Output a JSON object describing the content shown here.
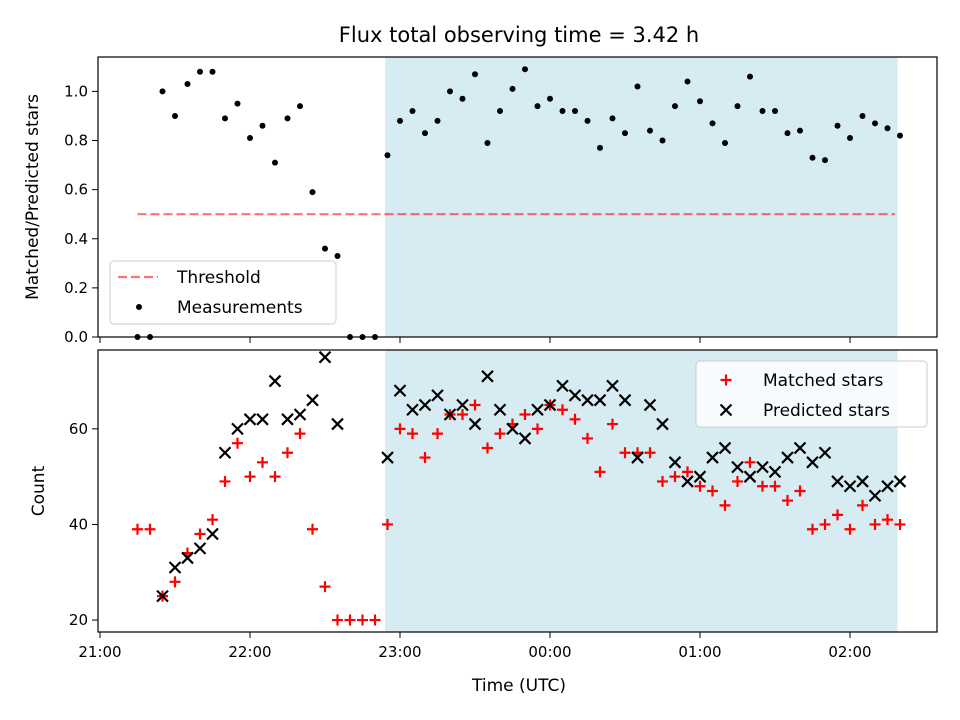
{
  "chart_data": {
    "title": "Flux total observing time = 3.42 h",
    "xlabel": "Time (UTC)",
    "x_unit": "minutes after 21:00 UTC",
    "x_ticks": [
      {
        "t": 0,
        "label": "21:00"
      },
      {
        "t": 60,
        "label": "22:00"
      },
      {
        "t": 120,
        "label": "23:00"
      },
      {
        "t": 180,
        "label": "00:00"
      },
      {
        "t": 240,
        "label": "01:00"
      },
      {
        "t": 300,
        "label": "02:00"
      }
    ],
    "shaded_span": [
      114,
      319
    ],
    "panels": [
      {
        "id": "ratio",
        "type": "scatter",
        "ylabel": "Matched/Predicted stars",
        "ylim": [
          0,
          1.14
        ],
        "yticks": [
          "0.0",
          "0.2",
          "0.4",
          "0.6",
          "0.8",
          "1.0"
        ],
        "threshold": {
          "name": "Threshold",
          "value": 0.5,
          "x_range": [
            15,
            318
          ]
        },
        "legend": [
          "Threshold",
          "Measurements"
        ],
        "series": [
          {
            "name": "Measurements",
            "x": [
              15,
              20,
              25,
              30,
              35,
              40,
              45,
              50,
              55,
              60,
              65,
              70,
              75,
              80,
              85,
              90,
              95,
              100,
              105,
              110,
              115,
              120,
              125,
              130,
              135,
              140,
              145,
              150,
              155,
              160,
              165,
              170,
              175,
              180,
              185,
              190,
              195,
              200,
              205,
              210,
              215,
              220,
              225,
              230,
              235,
              240,
              245,
              250,
              255,
              260,
              265,
              270,
              275,
              280,
              285,
              290,
              295,
              300,
              305,
              310,
              315,
              320
            ],
            "y": [
              0.0,
              0.0,
              1.0,
              0.9,
              1.03,
              1.08,
              1.08,
              0.89,
              0.95,
              0.81,
              0.86,
              0.71,
              0.89,
              0.94,
              0.59,
              0.36,
              0.33,
              0.0,
              0.0,
              0.0,
              0.74,
              0.88,
              0.92,
              0.83,
              0.88,
              1.0,
              0.97,
              1.07,
              0.79,
              0.92,
              1.01,
              1.09,
              0.94,
              0.97,
              0.92,
              0.92,
              0.88,
              0.77,
              0.89,
              0.83,
              1.02,
              0.84,
              0.8,
              0.94,
              1.04,
              0.96,
              0.87,
              0.79,
              0.94,
              1.06,
              0.92,
              0.92,
              0.83,
              0.84,
              0.73,
              0.72,
              0.86,
              0.81,
              0.9,
              0.87,
              0.85,
              0.82
            ]
          }
        ]
      },
      {
        "id": "count",
        "type": "scatter",
        "ylabel": "Count",
        "ylim": [
          17.5,
          76.5
        ],
        "yticks": [
          "20",
          "40",
          "60"
        ],
        "legend": [
          "Matched stars",
          "Predicted stars"
        ],
        "series": [
          {
            "name": "Matched stars",
            "color": "#ff0000",
            "marker": "plus",
            "x": [
              15,
              20,
              25,
              30,
              35,
              40,
              45,
              50,
              55,
              60,
              65,
              70,
              75,
              80,
              85,
              90,
              95,
              100,
              105,
              110,
              115,
              120,
              125,
              130,
              135,
              140,
              145,
              150,
              155,
              160,
              165,
              170,
              175,
              180,
              185,
              190,
              195,
              200,
              205,
              210,
              215,
              220,
              225,
              230,
              235,
              240,
              245,
              250,
              255,
              260,
              265,
              270,
              275,
              280,
              285,
              290,
              295,
              300,
              305,
              310,
              315,
              320
            ],
            "y": [
              39,
              39,
              25,
              28,
              34,
              38,
              41,
              49,
              57,
              50,
              53,
              50,
              55,
              59,
              39,
              27,
              20,
              20,
              20,
              20,
              40,
              60,
              59,
              54,
              59,
              63,
              63,
              65,
              56,
              59,
              61,
              63,
              60,
              65,
              64,
              62,
              58,
              51,
              61,
              55,
              55,
              55,
              49,
              50,
              51,
              48,
              47,
              44,
              49,
              53,
              48,
              48,
              45,
              47,
              39,
              40,
              42,
              39,
              44,
              40,
              41,
              40
            ]
          },
          {
            "name": "Predicted stars",
            "color": "#000000",
            "marker": "cross",
            "x": [
              25,
              30,
              35,
              40,
              45,
              50,
              55,
              60,
              65,
              70,
              75,
              80,
              85,
              90,
              95,
              115,
              120,
              125,
              130,
              135,
              140,
              145,
              150,
              155,
              160,
              165,
              170,
              175,
              180,
              185,
              190,
              195,
              200,
              205,
              210,
              215,
              220,
              225,
              230,
              235,
              240,
              245,
              250,
              255,
              260,
              265,
              270,
              275,
              280,
              285,
              290,
              295,
              300,
              305,
              310,
              315,
              320
            ],
            "y": [
              25,
              31,
              33,
              35,
              38,
              55,
              60,
              62,
              62,
              70,
              62,
              63,
              66,
              75,
              61,
              54,
              68,
              64,
              65,
              67,
              63,
              65,
              61,
              71,
              64,
              60,
              58,
              64,
              65,
              69,
              67,
              66,
              66,
              69,
              66,
              54,
              65,
              61,
              53,
              49,
              50,
              54,
              56,
              52,
              50,
              52,
              51,
              54,
              56,
              53,
              55,
              49,
              48,
              49,
              46,
              48,
              49
            ]
          }
        ]
      }
    ]
  }
}
